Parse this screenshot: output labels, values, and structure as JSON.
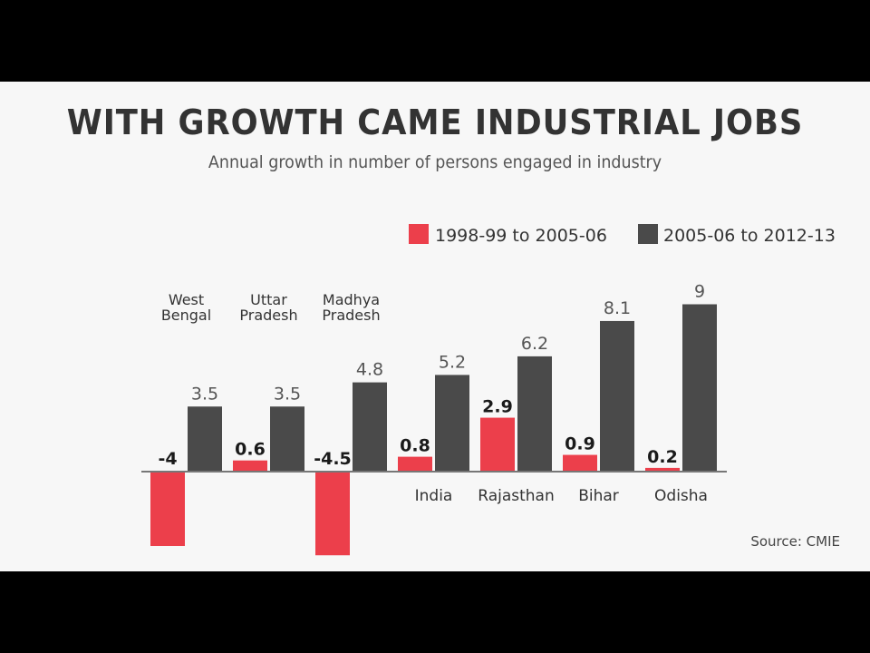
{
  "title": "WITH GROWTH CAME INDUSTRIAL JOBS",
  "subtitle": "Annual growth in number of persons engaged in industry",
  "source": "Source: CMIE",
  "colors": {
    "background": "#000000",
    "panel": "#f7f7f7",
    "text": "#333333"
  },
  "chart_data": {
    "type": "bar",
    "categories": [
      [
        "West",
        "Bengal"
      ],
      [
        "Uttar",
        "Pradesh"
      ],
      [
        "Madhya",
        "Pradesh"
      ],
      [
        "India"
      ],
      [
        "Rajasthan"
      ],
      [
        "Bihar"
      ],
      [
        "Odisha"
      ]
    ],
    "series": [
      {
        "name": "1998-99 to 2005-06",
        "color": "#ec3f4b",
        "values": [
          -4,
          0.6,
          -4.5,
          0.8,
          2.9,
          0.9,
          0.2
        ],
        "labels": [
          "-4",
          "0.6",
          "-4.5",
          "0.8",
          "2.9",
          "0.9",
          "0.2"
        ]
      },
      {
        "name": "2005-06 to 2012-13",
        "color": "#4a4a4a",
        "values": [
          3.5,
          3.5,
          4.8,
          5.2,
          6.2,
          8.1,
          9
        ],
        "labels": [
          "3.5",
          "3.5",
          "4.8",
          "5.2",
          "6.2",
          "8.1",
          "9"
        ]
      }
    ],
    "ylim": [
      -5,
      10
    ],
    "legend": "top-right",
    "grid": false
  }
}
